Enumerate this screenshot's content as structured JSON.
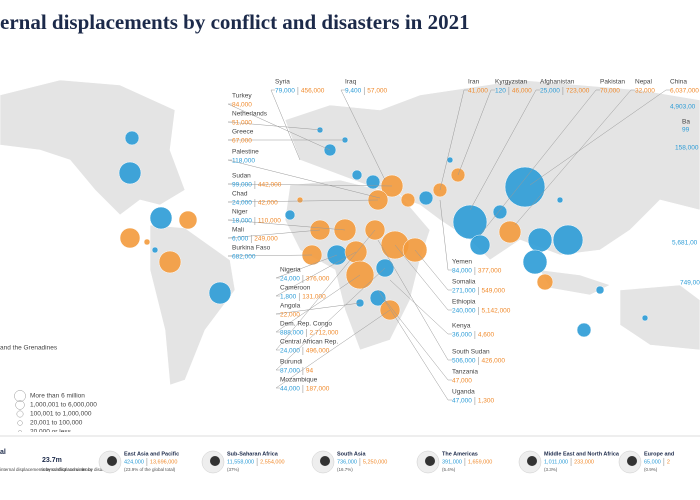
{
  "title": "ernal displacements by conflict and disasters in 2021",
  "countries": [
    {
      "name": "Syria",
      "conflict": "79,000",
      "disaster": "456,000"
    },
    {
      "name": "Iraq",
      "conflict": "9,400",
      "disaster": "57,000"
    },
    {
      "name": "Iran",
      "disaster": "41,000"
    },
    {
      "name": "Kyrgyzstan",
      "conflict": "120",
      "disaster": "46,000"
    },
    {
      "name": "Afghanistan",
      "conflict": "25,000",
      "disaster": "723,000"
    },
    {
      "name": "Pakistan",
      "disaster": "70,000"
    },
    {
      "name": "Nepal",
      "disaster": "32,000"
    },
    {
      "name": "China",
      "disaster": "6,037,000"
    },
    {
      "name": "Turkey",
      "disaster": "84,000"
    },
    {
      "name": "Netherlands",
      "disaster": "51,000"
    },
    {
      "name": "Greece",
      "disaster": "67,000"
    },
    {
      "name": "Palestine",
      "conflict": "118,000"
    },
    {
      "name": "Sudan",
      "conflict": "99,000",
      "disaster": "442,000"
    },
    {
      "name": "Chad",
      "conflict": "24,000",
      "disaster": "42,000"
    },
    {
      "name": "Niger",
      "conflict": "18,000",
      "disaster": "110,000"
    },
    {
      "name": "Mali",
      "conflict": "6,000",
      "disaster": "249,000"
    },
    {
      "name": "Burkina Faso",
      "conflict": "682,000"
    },
    {
      "name": "Nigeria",
      "conflict": "24,000",
      "disaster": "376,000"
    },
    {
      "name": "Cameroon",
      "conflict": "1,800",
      "disaster": "131,000"
    },
    {
      "name": "Angola",
      "disaster": "22,000"
    },
    {
      "name": "Dem. Rep. Congo",
      "conflict": "888,000",
      "disaster": "2,712,000"
    },
    {
      "name": "Central African Rep.",
      "conflict": "24,000",
      "disaster": "496,000"
    },
    {
      "name": "Burundi",
      "conflict": "87,000",
      "disaster": "94"
    },
    {
      "name": "Mozambique",
      "conflict": "44,000",
      "disaster": "187,000"
    },
    {
      "name": "Yemen",
      "conflict": "84,000",
      "disaster": "377,000"
    },
    {
      "name": "Somalia",
      "conflict": "271,000",
      "disaster": "549,000"
    },
    {
      "name": "Ethiopia",
      "conflict": "240,000",
      "disaster": "5,142,000"
    },
    {
      "name": "Kenya",
      "conflict": "36,000",
      "disaster": "4,600"
    },
    {
      "name": "South Sudan",
      "conflict": "506,000",
      "disaster": "426,000"
    },
    {
      "name": "Tanzania",
      "disaster": "47,000"
    },
    {
      "name": "Uganda",
      "conflict": "47,000",
      "disaster": "1,300"
    }
  ],
  "edge_labels": [
    "4,903,00",
    "Ba",
    "99",
    "158,000",
    "5,681,00",
    "749,00",
    "and the Grenadines"
  ],
  "legend": [
    "More than 6 million",
    "1,000,001 to 6,000,000",
    "100,001 to 1,000,000",
    "20,001 to 100,000",
    "20,000 or less"
  ],
  "totals": {
    "label": "al",
    "disaster_total": "23.7m",
    "disaster_note": "internal displacements by disasters",
    "conflict_note": "internal displacements by conflict and violence"
  },
  "regions": [
    {
      "name": "East Asia and Pacific",
      "conflict": "424,000",
      "disaster": "13,696,000",
      "share": "(23.9% of the global total)"
    },
    {
      "name": "Sub-Saharan Africa",
      "conflict": "11,558,000",
      "disaster": "2,554,000",
      "share": "(37%)"
    },
    {
      "name": "South Asia",
      "conflict": "736,000",
      "disaster": "5,250,000",
      "share": "(16.7%)"
    },
    {
      "name": "The Americas",
      "conflict": "391,000",
      "disaster": "1,659,000",
      "share": "(5.4%)"
    },
    {
      "name": "Middle East and North Africa",
      "conflict": "1,011,000",
      "disaster": "233,000",
      "share": "(3.3%)"
    },
    {
      "name": "Europe and",
      "conflict": "65,000",
      "disaster": "2",
      "share": "(0.9%)"
    }
  ]
}
